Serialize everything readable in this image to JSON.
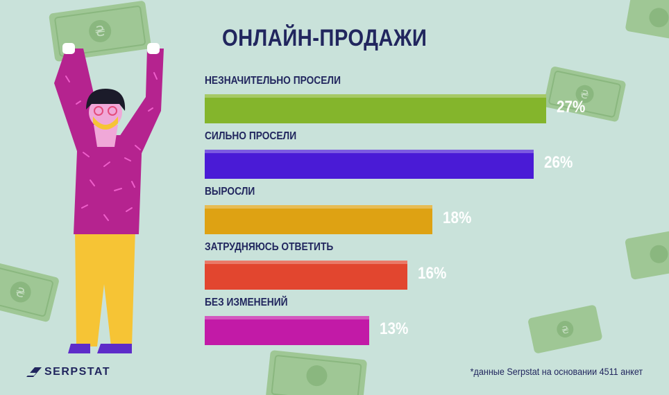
{
  "chart_data": {
    "type": "bar",
    "orientation": "horizontal",
    "title": "ОНЛАЙН-ПРОДАЖИ",
    "categories": [
      "НЕЗНАЧИТЕЛЬНО ПРОСЕЛИ",
      "СИЛЬНО ПРОСЕЛИ",
      "ВЫРОСЛИ",
      "ЗАТРУДНЯЮСЬ ОТВЕТИТЬ",
      "БЕЗ ИЗМЕНЕНИЙ"
    ],
    "values": [
      27,
      26,
      18,
      16,
      13
    ],
    "value_labels": [
      "27%",
      "26%",
      "18%",
      "16%",
      "13%"
    ],
    "colors": [
      "#84b52c",
      "#4a1bd6",
      "#dea213",
      "#e2462f",
      "#c21aa7"
    ],
    "unit": "%",
    "grid": false,
    "legend": "none"
  },
  "footnote": "*данные Serpstat на основании 4511 анкет",
  "brand": {
    "name": "SERPSTAT",
    "icon": "serpstat-logo-icon"
  },
  "decor": {
    "icons": [
      "dollar-banknote-icon",
      "person-holding-money-illustration"
    ]
  }
}
